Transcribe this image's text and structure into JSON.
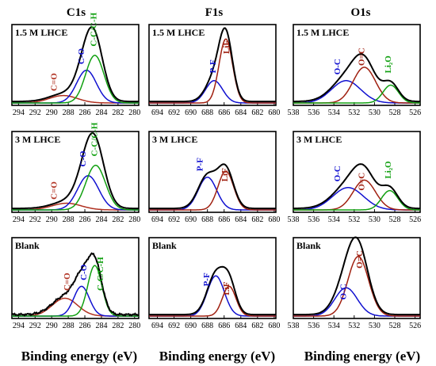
{
  "figure": {
    "column_titles": [
      "C1s",
      "F1s",
      "O1s"
    ],
    "xlabel": "Binding energy (eV)"
  },
  "chart_data": [
    {
      "id": "c1s-15",
      "type": "line",
      "column": "C1s",
      "title": "1.5 M LHCE",
      "xlabel": "Binding energy (eV)",
      "x_reversed": true,
      "xlim": [
        294.8,
        279.5
      ],
      "xticks": [
        294,
        292,
        290,
        288,
        286,
        284,
        282,
        280
      ],
      "series": [
        {
          "name": "C=O",
          "color": "#b03020",
          "peaks": [
            {
              "center": 288.6,
              "height": 0.1,
              "fwhm": 4.0
            }
          ]
        },
        {
          "name": "C-O",
          "color": "#1010d0",
          "peaks": [
            {
              "center": 285.8,
              "height": 0.44,
              "fwhm": 2.8
            }
          ]
        },
        {
          "name": "C-C/C-H",
          "color": "#10a010",
          "peaks": [
            {
              "center": 284.8,
              "height": 0.64,
              "fwhm": 2.6
            }
          ]
        },
        {
          "name": "",
          "color": "#000000",
          "kind": "envelope"
        }
      ],
      "labels": [
        {
          "text": "C=O",
          "series": "C=O",
          "x": 289.4,
          "y": 0.16
        },
        {
          "text": "C-O",
          "series": "C-O",
          "x": 286.1,
          "y": 0.52
        },
        {
          "text": "C-C/C-H",
          "series": "C-C/C-H",
          "x": 284.6,
          "y": 0.76
        }
      ]
    },
    {
      "id": "f1s-15",
      "type": "line",
      "column": "F1s",
      "title": "1.5 M LHCE",
      "xlabel": "Binding energy (eV)",
      "x_reversed": true,
      "xlim": [
        695,
        679.8
      ],
      "xticks": [
        694,
        692,
        690,
        688,
        686,
        684,
        682,
        680
      ],
      "series": [
        {
          "name": "P-F",
          "color": "#1010d0",
          "peaks": [
            {
              "center": 687.2,
              "height": 0.3,
              "fwhm": 2.4
            }
          ]
        },
        {
          "name": "LiF",
          "color": "#a02010",
          "peaks": [
            {
              "center": 685.8,
              "height": 0.86,
              "fwhm": 1.9
            }
          ]
        },
        {
          "name": "",
          "color": "#000000",
          "kind": "envelope"
        }
      ],
      "labels": [
        {
          "text": "P-F",
          "series": "P-F",
          "x": 687.0,
          "y": 0.4
        },
        {
          "text": "LiF",
          "series": "LiF",
          "x": 685.4,
          "y": 0.66
        }
      ]
    },
    {
      "id": "o1s-15",
      "type": "line",
      "column": "O1s",
      "title": "1.5 M LHCE",
      "xlabel": "Binding energy (eV)",
      "x_reversed": true,
      "xlim": [
        538,
        525.5
      ],
      "xticks": [
        538,
        536,
        534,
        532,
        530,
        528,
        526
      ],
      "series": [
        {
          "name": "O-C",
          "color": "#1010d0",
          "peaks": [
            {
              "center": 532.8,
              "height": 0.3,
              "fwhm": 3.4
            }
          ]
        },
        {
          "name": "O=C",
          "color": "#a02010",
          "peaks": [
            {
              "center": 531.0,
              "height": 0.48,
              "fwhm": 2.6
            }
          ]
        },
        {
          "name": "Li2O",
          "color": "#10a010",
          "peaks": [
            {
              "center": 528.4,
              "height": 0.24,
              "fwhm": 1.8
            }
          ]
        },
        {
          "name": "",
          "color": "#000000",
          "kind": "envelope"
        }
      ],
      "labels": [
        {
          "text": "O-C",
          "series": "O-C",
          "x": 533.4,
          "y": 0.38
        },
        {
          "text": "O=C",
          "series": "O=C",
          "x": 531.0,
          "y": 0.5
        },
        {
          "text": "Li₂O",
          "series": "Li2O",
          "x": 528.4,
          "y": 0.4
        }
      ]
    },
    {
      "id": "c1s-3",
      "type": "line",
      "column": "C1s",
      "title": "3 M LHCE",
      "xlabel": "Binding energy (eV)",
      "x_reversed": true,
      "xlim": [
        294.8,
        279.5
      ],
      "xticks": [
        294,
        292,
        290,
        288,
        286,
        284,
        282,
        280
      ],
      "series": [
        {
          "name": "C=O",
          "color": "#b03020",
          "peaks": [
            {
              "center": 288.2,
              "height": 0.09,
              "fwhm": 4.2
            }
          ]
        },
        {
          "name": "C-O",
          "color": "#1010d0",
          "peaks": [
            {
              "center": 285.6,
              "height": 0.46,
              "fwhm": 3.0
            }
          ]
        },
        {
          "name": "C-C/C-H",
          "color": "#10a010",
          "peaks": [
            {
              "center": 284.7,
              "height": 0.6,
              "fwhm": 2.8
            }
          ]
        },
        {
          "name": "",
          "color": "#000000",
          "kind": "envelope"
        }
      ],
      "labels": [
        {
          "text": "C=O",
          "series": "C=O",
          "x": 289.4,
          "y": 0.14
        },
        {
          "text": "C-O",
          "series": "C-O",
          "x": 285.9,
          "y": 0.58
        },
        {
          "text": "C-C/C-H",
          "series": "C-C/C-H",
          "x": 284.5,
          "y": 0.72
        }
      ]
    },
    {
      "id": "f1s-3",
      "type": "line",
      "column": "F1s",
      "title": "3 M LHCE",
      "xlabel": "Binding energy (eV)",
      "x_reversed": true,
      "xlim": [
        695,
        679.8
      ],
      "xticks": [
        694,
        692,
        690,
        688,
        686,
        684,
        682,
        680
      ],
      "series": [
        {
          "name": "P-F",
          "color": "#1010d0",
          "peaks": [
            {
              "center": 688.0,
              "height": 0.44,
              "fwhm": 2.6
            }
          ]
        },
        {
          "name": "LiF",
          "color": "#a02010",
          "peaks": [
            {
              "center": 685.8,
              "height": 0.52,
              "fwhm": 2.2
            }
          ]
        },
        {
          "name": "",
          "color": "#000000",
          "kind": "envelope"
        }
      ],
      "labels": [
        {
          "text": "P-F",
          "series": "P-F",
          "x": 688.6,
          "y": 0.52
        },
        {
          "text": "LiF",
          "series": "LiF",
          "x": 685.6,
          "y": 0.38
        }
      ]
    },
    {
      "id": "o1s-3",
      "type": "line",
      "column": "O1s",
      "title": "3 M LHCE",
      "xlabel": "Binding energy (eV)",
      "x_reversed": true,
      "xlim": [
        538,
        525.5
      ],
      "xticks": [
        538,
        536,
        534,
        532,
        530,
        528,
        526
      ],
      "series": [
        {
          "name": "O-C",
          "color": "#1010d0",
          "peaks": [
            {
              "center": 532.6,
              "height": 0.3,
              "fwhm": 3.6
            }
          ]
        },
        {
          "name": "O=C",
          "color": "#a02010",
          "peaks": [
            {
              "center": 531.0,
              "height": 0.4,
              "fwhm": 2.6
            }
          ]
        },
        {
          "name": "Li2O",
          "color": "#10a010",
          "peaks": [
            {
              "center": 528.5,
              "height": 0.26,
              "fwhm": 1.9
            }
          ]
        },
        {
          "name": "",
          "color": "#000000",
          "kind": "envelope"
        }
      ],
      "labels": [
        {
          "text": "O-C",
          "series": "O-C",
          "x": 533.4,
          "y": 0.38
        },
        {
          "text": "O=C",
          "series": "O=C",
          "x": 531.0,
          "y": 0.26
        },
        {
          "text": "Li₂O",
          "series": "Li2O",
          "x": 528.4,
          "y": 0.42
        }
      ]
    },
    {
      "id": "c1s-b",
      "type": "line",
      "column": "C1s",
      "title": "Blank",
      "xlabel": "Binding energy (eV)",
      "x_reversed": true,
      "xlim": [
        294.8,
        279.5
      ],
      "xticks": [
        294,
        292,
        290,
        288,
        286,
        284,
        282,
        280
      ],
      "series": [
        {
          "name": "C=O",
          "color": "#b03020",
          "peaks": [
            {
              "center": 288.4,
              "height": 0.24,
              "fwhm": 3.6
            }
          ]
        },
        {
          "name": "C-O",
          "color": "#1010d0",
          "peaks": [
            {
              "center": 286.4,
              "height": 0.4,
              "fwhm": 2.2
            }
          ]
        },
        {
          "name": "C-C/C-H",
          "color": "#10a010",
          "peaks": [
            {
              "center": 284.8,
              "height": 0.68,
              "fwhm": 2.0
            }
          ]
        },
        {
          "name": "",
          "color": "#000000",
          "kind": "envelope",
          "noisy": true
        }
      ],
      "labels": [
        {
          "text": "C=O",
          "series": "C=O",
          "x": 287.8,
          "y": 0.34
        },
        {
          "text": "C-O",
          "series": "C-O",
          "x": 285.8,
          "y": 0.48
        },
        {
          "text": "C-C/C-H",
          "series": "C-C/C-H",
          "x": 283.8,
          "y": 0.34
        }
      ]
    },
    {
      "id": "f1s-b",
      "type": "line",
      "column": "F1s",
      "title": "Blank",
      "xlabel": "Binding energy (eV)",
      "x_reversed": true,
      "xlim": [
        695,
        679.8
      ],
      "xticks": [
        694,
        692,
        690,
        688,
        686,
        684,
        682,
        680
      ],
      "series": [
        {
          "name": "P-F",
          "color": "#1010d0",
          "peaks": [
            {
              "center": 687.0,
              "height": 0.54,
              "fwhm": 2.4
            }
          ]
        },
        {
          "name": "LiF",
          "color": "#a02010",
          "peaks": [
            {
              "center": 685.4,
              "height": 0.4,
              "fwhm": 1.9
            }
          ]
        },
        {
          "name": "",
          "color": "#000000",
          "kind": "envelope"
        }
      ],
      "labels": [
        {
          "text": "P-F",
          "series": "P-F",
          "x": 687.8,
          "y": 0.4
        },
        {
          "text": "LiF",
          "series": "LiF",
          "x": 685.4,
          "y": 0.28
        }
      ]
    },
    {
      "id": "o1s-b",
      "type": "line",
      "column": "O1s",
      "title": "Blank",
      "xlabel": "Binding energy (eV)",
      "x_reversed": true,
      "xlim": [
        538,
        525.5
      ],
      "xticks": [
        538,
        536,
        534,
        532,
        530,
        528,
        526
      ],
      "series": [
        {
          "name": "O-C",
          "color": "#1010d0",
          "peaks": [
            {
              "center": 532.8,
              "height": 0.38,
              "fwhm": 2.6
            }
          ]
        },
        {
          "name": "O=C",
          "color": "#a02010",
          "peaks": [
            {
              "center": 531.6,
              "height": 0.8,
              "fwhm": 2.4
            }
          ]
        },
        {
          "name": "",
          "color": "#000000",
          "kind": "envelope"
        }
      ],
      "labels": [
        {
          "text": "O-C",
          "series": "O-C",
          "x": 532.8,
          "y": 0.22
        },
        {
          "text": "O=C",
          "series": "O=C",
          "x": 531.2,
          "y": 0.64
        }
      ]
    }
  ]
}
